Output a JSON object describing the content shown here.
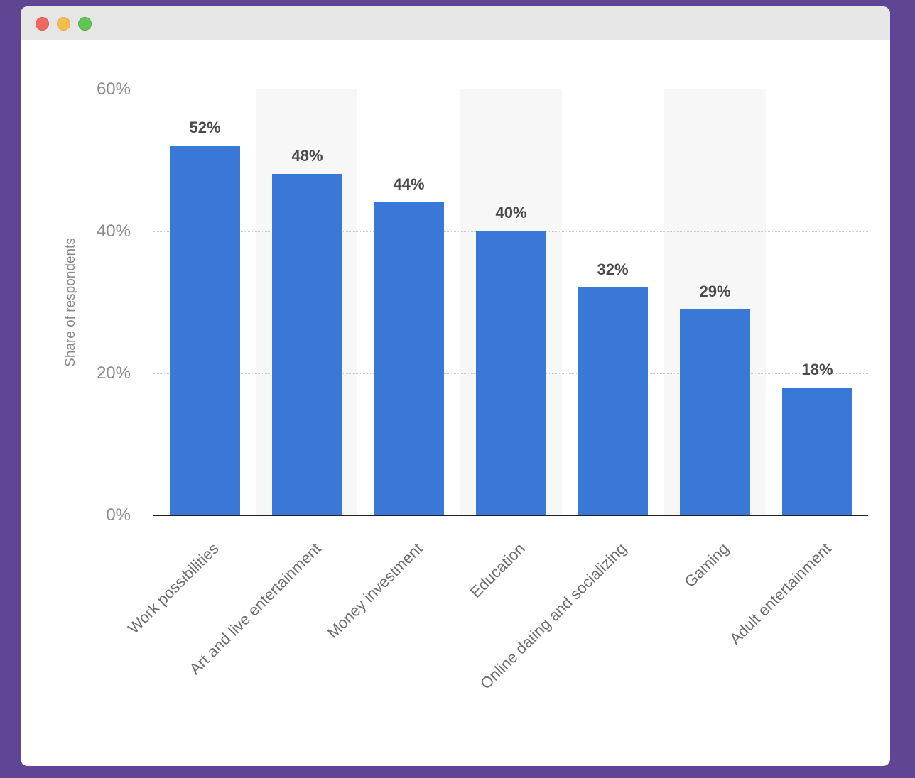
{
  "window": {
    "controls": [
      "close",
      "minimize",
      "maximize"
    ],
    "colors": {
      "background": "#5f4594",
      "bar": "#3a78d8"
    }
  },
  "chart_data": {
    "type": "bar",
    "title": "",
    "xlabel": "",
    "ylabel": "Share of respondents",
    "categories": [
      "Work possibilities",
      "Art and live entertainment",
      "Money investment",
      "Education",
      "Online dating and socializing",
      "Gaming",
      "Adult entertainment"
    ],
    "values": [
      52,
      48,
      44,
      40,
      32,
      29,
      18
    ],
    "value_labels": [
      "52%",
      "48%",
      "44%",
      "40%",
      "32%",
      "29%",
      "18%"
    ],
    "ylim": [
      0,
      60
    ],
    "yticks": [
      "0%",
      "20%",
      "40%",
      "60%"
    ],
    "grid": true,
    "legend": null
  }
}
